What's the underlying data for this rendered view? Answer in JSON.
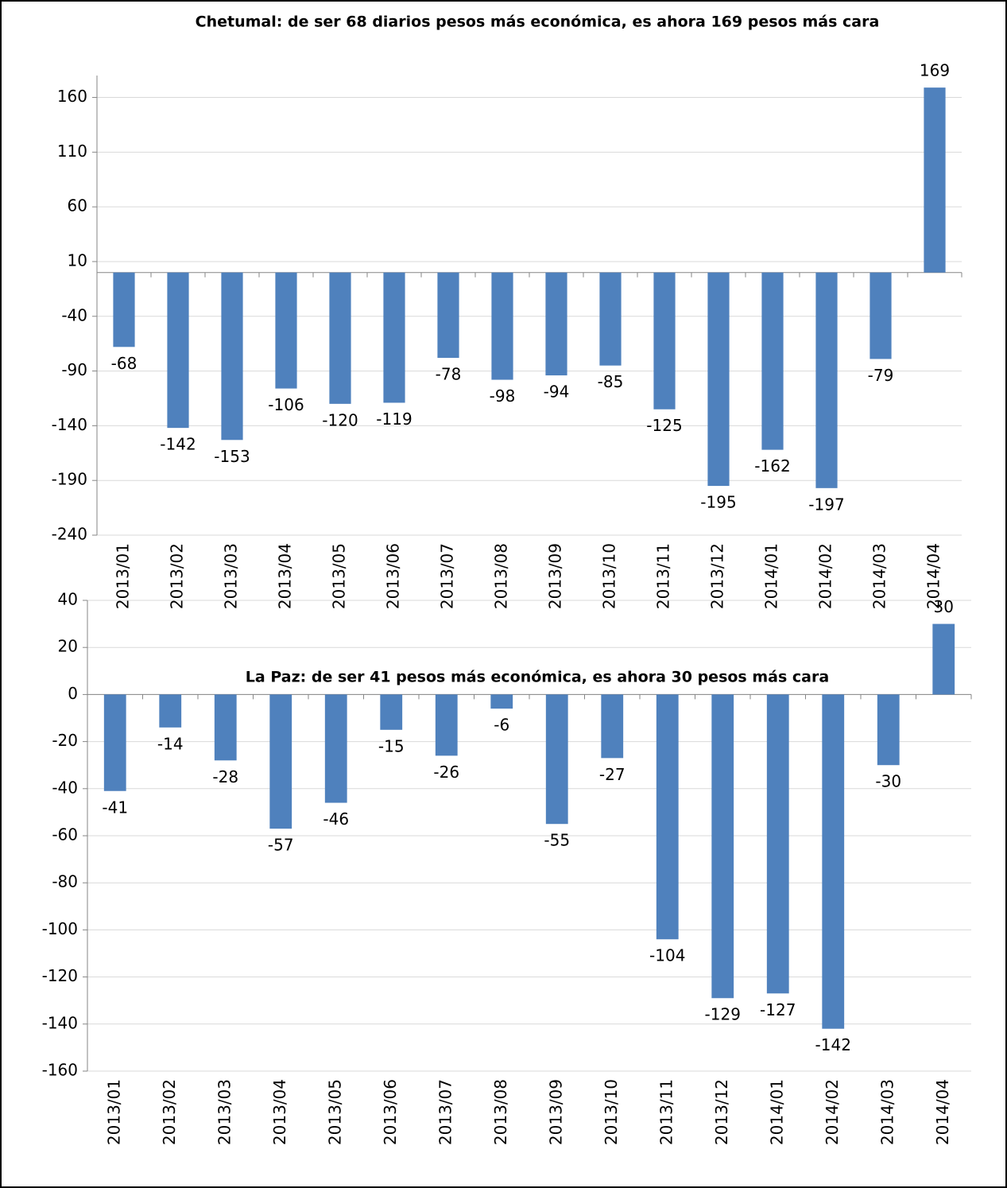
{
  "chart_data": [
    {
      "type": "bar",
      "title": "Chetumal: de ser 68 diarios pesos más económica, es ahora 169 pesos más cara",
      "categories": [
        "2013/01",
        "2013/02",
        "2013/03",
        "2013/04",
        "2013/05",
        "2013/06",
        "2013/07",
        "2013/08",
        "2013/09",
        "2013/10",
        "2013/11",
        "2013/12",
        "2014/01",
        "2014/02",
        "2014/03",
        "2014/04"
      ],
      "values": [
        -68,
        -142,
        -153,
        -106,
        -120,
        -119,
        -78,
        -98,
        -94,
        -85,
        -125,
        -195,
        -162,
        -197,
        -79,
        169
      ],
      "color": "#4f81bd",
      "ylim": [
        -240,
        180
      ],
      "yticks": [
        -240,
        -190,
        -140,
        -90,
        -40,
        10,
        60,
        110,
        160
      ],
      "grid": true
    },
    {
      "type": "bar",
      "title": "La Paz: de ser 41 pesos más económica, es ahora 30 pesos más cara",
      "categories": [
        "2013/01",
        "2013/02",
        "2013/03",
        "2013/04",
        "2013/05",
        "2013/06",
        "2013/07",
        "2013/08",
        "2013/09",
        "2013/10",
        "2013/11",
        "2013/12",
        "2014/01",
        "2014/02",
        "2014/03",
        "2014/04"
      ],
      "values": [
        -41,
        -14,
        -28,
        -57,
        -46,
        -15,
        -26,
        -6,
        -55,
        -27,
        -104,
        -129,
        -127,
        -142,
        -30,
        30
      ],
      "color": "#4f81bd",
      "ylim": [
        -160,
        40
      ],
      "yticks": [
        -160,
        -140,
        -120,
        -100,
        -80,
        -60,
        -40,
        -20,
        0,
        20,
        40
      ],
      "grid": true
    }
  ]
}
